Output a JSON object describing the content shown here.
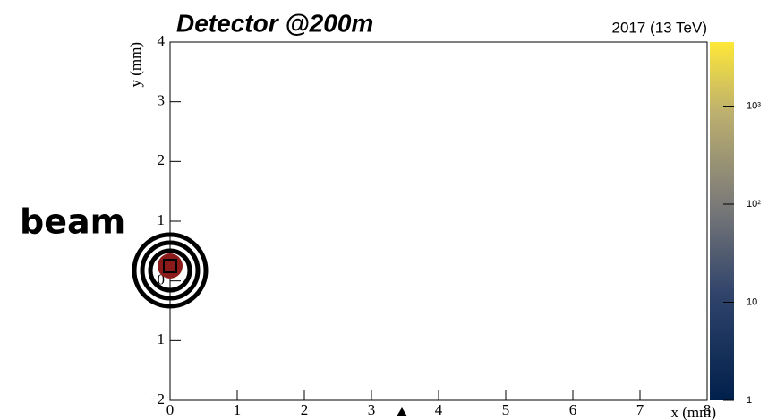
{
  "chart_data": {
    "type": "scatter",
    "title": "Detector @200m",
    "subtitle": "2017 (13 TeV)",
    "x_label": "x (mm)",
    "y_label": "y (mm)",
    "annotation": "beam",
    "xlim": [
      0,
      8
    ],
    "xticks": [
      0,
      1,
      2,
      3,
      4,
      5,
      6,
      7,
      8
    ],
    "ylim": [
      -2,
      4
    ],
    "yticks": [
      {
        "value": -2,
        "label": "−2"
      },
      {
        "value": -1,
        "label": "−1"
      },
      0,
      1,
      2,
      3,
      4
    ],
    "zlim": [
      1,
      4500
    ],
    "zscale": "log",
    "zticks": [
      1,
      10,
      {
        "value": 100,
        "label": "10²"
      },
      {
        "value": 1000,
        "label": "10³"
      }
    ],
    "series": [
      {
        "color": "#8b1a1a",
        "x": [
          0
        ],
        "values": [
          0.25
        ]
      }
    ]
  }
}
